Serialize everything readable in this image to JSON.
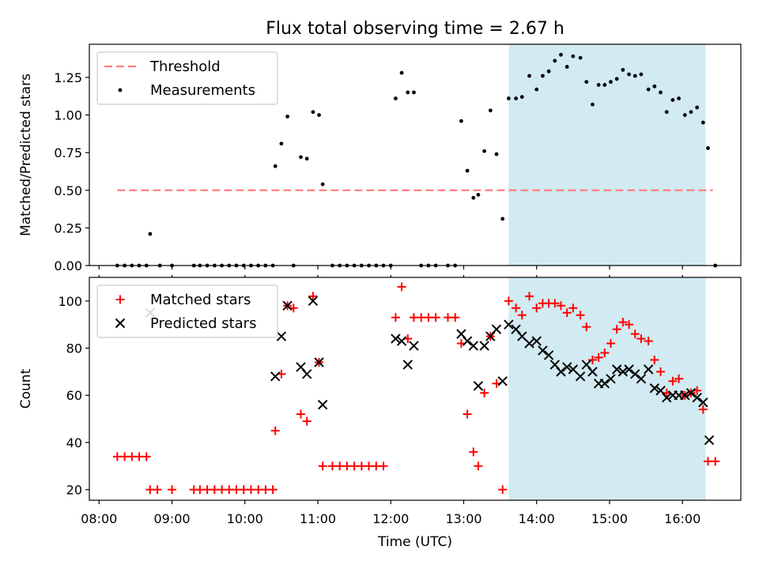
{
  "title": "Flux total observing time = 2.67 h",
  "colors": {
    "threshold": "#ff7f7f",
    "measurements": "#000000",
    "matched": "#ff0000",
    "predicted": "#000000",
    "shade_fill": "#add8e6",
    "axes": "#000000"
  },
  "chart_data": [
    {
      "type": "scatter",
      "ylabel": "Matched/Predicted stars",
      "ylim": [
        0,
        1.47
      ],
      "yticks": [
        0,
        0.25,
        0.5,
        0.75,
        1.0,
        1.25
      ],
      "ytick_labels": [
        "0.00",
        "0.25",
        "0.50",
        "0.75",
        "1.00",
        "1.25"
      ],
      "xlim": [
        "07:52",
        "16:48"
      ],
      "shaded_interval": [
        "13:37",
        "16:19"
      ],
      "legend": {
        "position": "top-left",
        "threshold_label": "Threshold",
        "measurements_label": "Measurements"
      },
      "threshold": {
        "y": 0.5,
        "x_range": [
          "08:15",
          "16:25"
        ],
        "style": "dashed"
      },
      "measurements": [
        {
          "x": "08:15",
          "y": 0
        },
        {
          "x": "08:21",
          "y": 0
        },
        {
          "x": "08:27",
          "y": 0
        },
        {
          "x": "08:33",
          "y": 0
        },
        {
          "x": "08:39",
          "y": 0
        },
        {
          "x": "08:42",
          "y": 0.21
        },
        {
          "x": "08:50",
          "y": 0
        },
        {
          "x": "09:00",
          "y": 0
        },
        {
          "x": "09:18",
          "y": 0
        },
        {
          "x": "09:23",
          "y": 0
        },
        {
          "x": "09:29",
          "y": 0
        },
        {
          "x": "09:35",
          "y": 0
        },
        {
          "x": "09:41",
          "y": 0
        },
        {
          "x": "09:47",
          "y": 0
        },
        {
          "x": "09:53",
          "y": 0
        },
        {
          "x": "09:59",
          "y": 0
        },
        {
          "x": "10:05",
          "y": 0
        },
        {
          "x": "10:11",
          "y": 0
        },
        {
          "x": "10:17",
          "y": 0
        },
        {
          "x": "10:23",
          "y": 0
        },
        {
          "x": "10:25",
          "y": 0.66
        },
        {
          "x": "10:30",
          "y": 0.81
        },
        {
          "x": "10:35",
          "y": 0.99
        },
        {
          "x": "10:40",
          "y": 0
        },
        {
          "x": "10:46",
          "y": 0.72
        },
        {
          "x": "10:51",
          "y": 0.71
        },
        {
          "x": "10:56",
          "y": 1.02
        },
        {
          "x": "11:01",
          "y": 1.0
        },
        {
          "x": "11:04",
          "y": 0.54
        },
        {
          "x": "11:12",
          "y": 0
        },
        {
          "x": "11:18",
          "y": 0
        },
        {
          "x": "11:24",
          "y": 0
        },
        {
          "x": "11:30",
          "y": 0
        },
        {
          "x": "11:36",
          "y": 0
        },
        {
          "x": "11:42",
          "y": 0
        },
        {
          "x": "11:48",
          "y": 0
        },
        {
          "x": "11:54",
          "y": 0
        },
        {
          "x": "12:00",
          "y": 0
        },
        {
          "x": "12:04",
          "y": 1.11
        },
        {
          "x": "12:09",
          "y": 1.28
        },
        {
          "x": "12:14",
          "y": 1.15
        },
        {
          "x": "12:19",
          "y": 1.15
        },
        {
          "x": "12:25",
          "y": 0
        },
        {
          "x": "12:31",
          "y": 0
        },
        {
          "x": "12:37",
          "y": 0
        },
        {
          "x": "12:47",
          "y": 0
        },
        {
          "x": "12:53",
          "y": 0
        },
        {
          "x": "12:58",
          "y": 0.96
        },
        {
          "x": "13:03",
          "y": 0.63
        },
        {
          "x": "13:08",
          "y": 0.45
        },
        {
          "x": "13:12",
          "y": 0.47
        },
        {
          "x": "13:17",
          "y": 0.76
        },
        {
          "x": "13:22",
          "y": 1.03
        },
        {
          "x": "13:27",
          "y": 0.74
        },
        {
          "x": "13:32",
          "y": 0.31
        },
        {
          "x": "13:37",
          "y": 1.11
        },
        {
          "x": "13:43",
          "y": 1.11
        },
        {
          "x": "13:48",
          "y": 1.12
        },
        {
          "x": "13:54",
          "y": 1.26
        },
        {
          "x": "14:00",
          "y": 1.17
        },
        {
          "x": "14:05",
          "y": 1.26
        },
        {
          "x": "14:10",
          "y": 1.29
        },
        {
          "x": "14:15",
          "y": 1.36
        },
        {
          "x": "14:20",
          "y": 1.4
        },
        {
          "x": "14:25",
          "y": 1.32
        },
        {
          "x": "14:30",
          "y": 1.39
        },
        {
          "x": "14:36",
          "y": 1.38
        },
        {
          "x": "14:41",
          "y": 1.22
        },
        {
          "x": "14:46",
          "y": 1.07
        },
        {
          "x": "14:51",
          "y": 1.2
        },
        {
          "x": "14:56",
          "y": 1.2
        },
        {
          "x": "15:01",
          "y": 1.22
        },
        {
          "x": "15:06",
          "y": 1.24
        },
        {
          "x": "15:11",
          "y": 1.3
        },
        {
          "x": "15:16",
          "y": 1.27
        },
        {
          "x": "15:21",
          "y": 1.26
        },
        {
          "x": "15:26",
          "y": 1.27
        },
        {
          "x": "15:32",
          "y": 1.17
        },
        {
          "x": "15:37",
          "y": 1.19
        },
        {
          "x": "15:42",
          "y": 1.15
        },
        {
          "x": "15:47",
          "y": 1.02
        },
        {
          "x": "15:52",
          "y": 1.1
        },
        {
          "x": "15:57",
          "y": 1.11
        },
        {
          "x": "16:02",
          "y": 1.0
        },
        {
          "x": "16:07",
          "y": 1.02
        },
        {
          "x": "16:12",
          "y": 1.05
        },
        {
          "x": "16:17",
          "y": 0.95
        },
        {
          "x": "16:21",
          "y": 0.78
        },
        {
          "x": "16:27",
          "y": 0
        }
      ]
    },
    {
      "type": "scatter",
      "xlabel": "Time (UTC)",
      "ylabel": "Count",
      "ylim": [
        15.5,
        110
      ],
      "yticks": [
        20,
        40,
        60,
        80,
        100
      ],
      "xlim": [
        "07:52",
        "16:48"
      ],
      "xticks": [
        "08:00",
        "09:00",
        "10:00",
        "11:00",
        "12:00",
        "13:00",
        "14:00",
        "15:00",
        "16:00"
      ],
      "shaded_interval": [
        "13:37",
        "16:19"
      ],
      "legend": {
        "position": "top-left"
      },
      "series": [
        {
          "name": "Matched stars",
          "marker": "plus",
          "points": [
            {
              "x": "08:15",
              "y": 34
            },
            {
              "x": "08:21",
              "y": 34
            },
            {
              "x": "08:27",
              "y": 34
            },
            {
              "x": "08:33",
              "y": 34
            },
            {
              "x": "08:39",
              "y": 34
            },
            {
              "x": "08:42",
              "y": 20
            },
            {
              "x": "08:48",
              "y": 20
            },
            {
              "x": "09:00",
              "y": 20
            },
            {
              "x": "09:18",
              "y": 20
            },
            {
              "x": "09:23",
              "y": 20
            },
            {
              "x": "09:29",
              "y": 20
            },
            {
              "x": "09:35",
              "y": 20
            },
            {
              "x": "09:41",
              "y": 20
            },
            {
              "x": "09:47",
              "y": 20
            },
            {
              "x": "09:53",
              "y": 20
            },
            {
              "x": "09:59",
              "y": 20
            },
            {
              "x": "10:05",
              "y": 20
            },
            {
              "x": "10:11",
              "y": 20
            },
            {
              "x": "10:17",
              "y": 20
            },
            {
              "x": "10:23",
              "y": 20
            },
            {
              "x": "10:25",
              "y": 45
            },
            {
              "x": "10:30",
              "y": 69
            },
            {
              "x": "10:35",
              "y": 98
            },
            {
              "x": "10:40",
              "y": 97
            },
            {
              "x": "10:46",
              "y": 52
            },
            {
              "x": "10:51",
              "y": 49
            },
            {
              "x": "10:56",
              "y": 102
            },
            {
              "x": "11:01",
              "y": 74
            },
            {
              "x": "11:04",
              "y": 30
            },
            {
              "x": "11:12",
              "y": 30
            },
            {
              "x": "11:18",
              "y": 30
            },
            {
              "x": "11:24",
              "y": 30
            },
            {
              "x": "11:30",
              "y": 30
            },
            {
              "x": "11:36",
              "y": 30
            },
            {
              "x": "11:42",
              "y": 30
            },
            {
              "x": "11:48",
              "y": 30
            },
            {
              "x": "11:54",
              "y": 30
            },
            {
              "x": "12:04",
              "y": 93
            },
            {
              "x": "12:09",
              "y": 106
            },
            {
              "x": "12:14",
              "y": 84
            },
            {
              "x": "12:19",
              "y": 93
            },
            {
              "x": "12:25",
              "y": 93
            },
            {
              "x": "12:31",
              "y": 93
            },
            {
              "x": "12:37",
              "y": 93
            },
            {
              "x": "12:47",
              "y": 93
            },
            {
              "x": "12:53",
              "y": 93
            },
            {
              "x": "12:58",
              "y": 82
            },
            {
              "x": "13:03",
              "y": 52
            },
            {
              "x": "13:08",
              "y": 36
            },
            {
              "x": "13:12",
              "y": 30
            },
            {
              "x": "13:17",
              "y": 61
            },
            {
              "x": "13:22",
              "y": 85
            },
            {
              "x": "13:27",
              "y": 65
            },
            {
              "x": "13:32",
              "y": 20
            },
            {
              "x": "13:37",
              "y": 100
            },
            {
              "x": "13:43",
              "y": 97
            },
            {
              "x": "13:48",
              "y": 94
            },
            {
              "x": "13:54",
              "y": 102
            },
            {
              "x": "14:00",
              "y": 97
            },
            {
              "x": "14:05",
              "y": 99
            },
            {
              "x": "14:10",
              "y": 99
            },
            {
              "x": "14:15",
              "y": 99
            },
            {
              "x": "14:20",
              "y": 98
            },
            {
              "x": "14:25",
              "y": 95
            },
            {
              "x": "14:30",
              "y": 97
            },
            {
              "x": "14:36",
              "y": 94
            },
            {
              "x": "14:41",
              "y": 89
            },
            {
              "x": "14:46",
              "y": 75
            },
            {
              "x": "14:51",
              "y": 76
            },
            {
              "x": "14:56",
              "y": 78
            },
            {
              "x": "15:01",
              "y": 82
            },
            {
              "x": "15:06",
              "y": 88
            },
            {
              "x": "15:11",
              "y": 91
            },
            {
              "x": "15:16",
              "y": 90
            },
            {
              "x": "15:21",
              "y": 86
            },
            {
              "x": "15:26",
              "y": 84
            },
            {
              "x": "15:32",
              "y": 83
            },
            {
              "x": "15:37",
              "y": 75
            },
            {
              "x": "15:42",
              "y": 70
            },
            {
              "x": "15:47",
              "y": 61
            },
            {
              "x": "15:52",
              "y": 66
            },
            {
              "x": "15:57",
              "y": 67
            },
            {
              "x": "16:02",
              "y": 60
            },
            {
              "x": "16:07",
              "y": 61
            },
            {
              "x": "16:12",
              "y": 62
            },
            {
              "x": "16:17",
              "y": 54
            },
            {
              "x": "16:21",
              "y": 32
            },
            {
              "x": "16:27",
              "y": 32
            }
          ]
        },
        {
          "name": "Predicted stars",
          "marker": "x",
          "points": [
            {
              "x": "08:42",
              "y": 95
            },
            {
              "x": "10:25",
              "y": 68
            },
            {
              "x": "10:30",
              "y": 85
            },
            {
              "x": "10:35",
              "y": 98
            },
            {
              "x": "10:46",
              "y": 72
            },
            {
              "x": "10:51",
              "y": 69
            },
            {
              "x": "10:56",
              "y": 100
            },
            {
              "x": "11:01",
              "y": 74
            },
            {
              "x": "11:04",
              "y": 56
            },
            {
              "x": "12:04",
              "y": 84
            },
            {
              "x": "12:09",
              "y": 83
            },
            {
              "x": "12:14",
              "y": 73
            },
            {
              "x": "12:19",
              "y": 81
            },
            {
              "x": "12:58",
              "y": 86
            },
            {
              "x": "13:03",
              "y": 83
            },
            {
              "x": "13:08",
              "y": 81
            },
            {
              "x": "13:12",
              "y": 64
            },
            {
              "x": "13:17",
              "y": 81
            },
            {
              "x": "13:22",
              "y": 85
            },
            {
              "x": "13:27",
              "y": 88
            },
            {
              "x": "13:32",
              "y": 66
            },
            {
              "x": "13:37",
              "y": 90
            },
            {
              "x": "13:43",
              "y": 88
            },
            {
              "x": "13:48",
              "y": 85
            },
            {
              "x": "13:54",
              "y": 82
            },
            {
              "x": "14:00",
              "y": 83
            },
            {
              "x": "14:05",
              "y": 79
            },
            {
              "x": "14:10",
              "y": 77
            },
            {
              "x": "14:15",
              "y": 73
            },
            {
              "x": "14:20",
              "y": 70
            },
            {
              "x": "14:25",
              "y": 72
            },
            {
              "x": "14:30",
              "y": 71
            },
            {
              "x": "14:36",
              "y": 68
            },
            {
              "x": "14:41",
              "y": 73
            },
            {
              "x": "14:46",
              "y": 70
            },
            {
              "x": "14:51",
              "y": 65
            },
            {
              "x": "14:56",
              "y": 65
            },
            {
              "x": "15:01",
              "y": 67
            },
            {
              "x": "15:06",
              "y": 71
            },
            {
              "x": "15:11",
              "y": 70
            },
            {
              "x": "15:16",
              "y": 71
            },
            {
              "x": "15:21",
              "y": 69
            },
            {
              "x": "15:26",
              "y": 67
            },
            {
              "x": "15:32",
              "y": 71
            },
            {
              "x": "15:37",
              "y": 63
            },
            {
              "x": "15:42",
              "y": 62
            },
            {
              "x": "15:47",
              "y": 59
            },
            {
              "x": "15:52",
              "y": 60
            },
            {
              "x": "15:57",
              "y": 60
            },
            {
              "x": "16:02",
              "y": 60
            },
            {
              "x": "16:07",
              "y": 61
            },
            {
              "x": "16:12",
              "y": 59
            },
            {
              "x": "16:17",
              "y": 57
            },
            {
              "x": "16:22",
              "y": 41
            }
          ]
        }
      ]
    }
  ]
}
